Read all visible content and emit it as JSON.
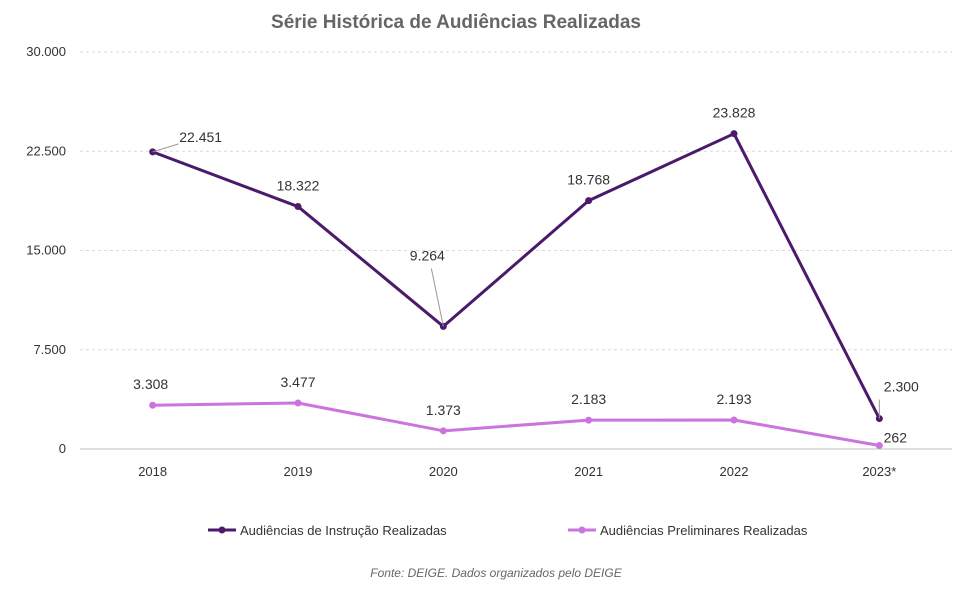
{
  "chart_data": {
    "type": "line",
    "title": "Série Histórica de Audiências Realizadas",
    "categories": [
      "2018",
      "2019",
      "2020",
      "2021",
      "2022",
      "2023*"
    ],
    "ylim": [
      0,
      30000
    ],
    "yticks": [
      0,
      7500,
      15000,
      22500,
      30000
    ],
    "ytick_labels": [
      "0",
      "7.500",
      "15.000",
      "22.500",
      "30.000"
    ],
    "grid": true,
    "legend_position": "bottom",
    "series": [
      {
        "name": "Audiências de Instrução Realizadas",
        "color": "#4b1a6b",
        "values": [
          22451,
          18322,
          9264,
          18768,
          23828,
          2300
        ],
        "labels": [
          "22.451",
          "18.322",
          "9.264",
          "18.768",
          "23.828",
          "2.300"
        ]
      },
      {
        "name": "Audiências Preliminares Realizadas",
        "color": "#cc74de",
        "values": [
          3308,
          3477,
          1373,
          2183,
          2193,
          262
        ],
        "labels": [
          "3.308",
          "3.477",
          "1.373",
          "2.183",
          "2.193",
          "262"
        ]
      }
    ],
    "source": "Fonte: DEIGE. Dados organizados pelo DEIGE"
  }
}
